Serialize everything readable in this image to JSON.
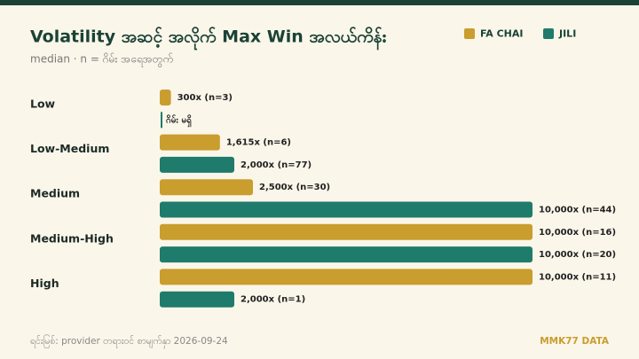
{
  "chart_data": {
    "type": "bar",
    "orientation": "horizontal",
    "title": "Volatility အဆင့် အလိုက် Max Win အလယ်ကိန်း",
    "subtitle": "median · n = ဂိမ်း အရေအတွက်",
    "categories": [
      "Low",
      "Low-Medium",
      "Medium",
      "Medium-High",
      "High"
    ],
    "series": [
      {
        "name": "FA CHAI",
        "color": "#c99d2e",
        "values": [
          300,
          1615,
          2500,
          10000,
          10000
        ],
        "value_labels": [
          "300x (n=3)",
          "1,615x (n=6)",
          "2,500x (n=30)",
          "10,000x (n=16)",
          "10,000x (n=11)"
        ]
      },
      {
        "name": "JILI",
        "color": "#1f7b6b",
        "values": [
          null,
          2000,
          10000,
          10000,
          2000
        ],
        "value_labels": [
          "ဂိမ်း မရှိ",
          "2,000x (n=77)",
          "10,000x (n=44)",
          "10,000x (n=20)",
          "2,000x (n=1)"
        ]
      }
    ],
    "xlim": [
      0,
      10000
    ],
    "legend": "top-right",
    "source": "ရင်းမြစ်: provider တရားဝင် စာမျက်နှာ 2026-09-24",
    "brand": "MMK77 DATA"
  }
}
